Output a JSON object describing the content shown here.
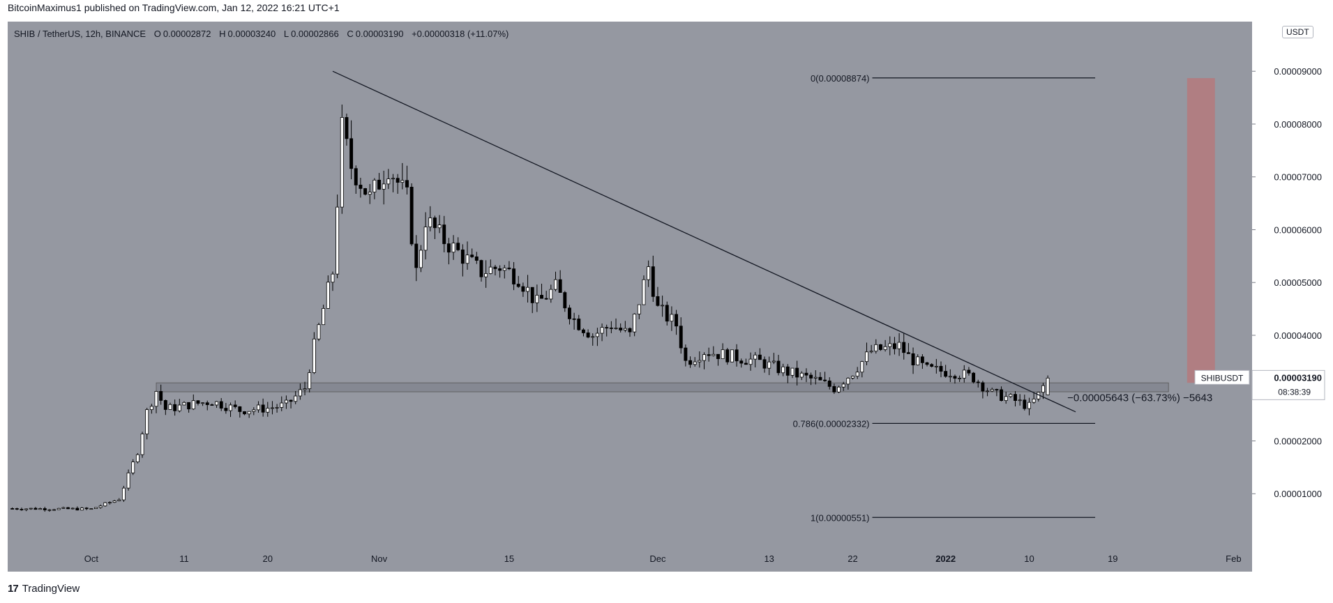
{
  "header": {
    "publisher_line": "BitcoinMaximus1 published on TradingView.com, Jan 12, 2022 16:21 UTC+1"
  },
  "legend": {
    "symbol": "SHIB / TetherUS, 12h, BINANCE",
    "o_label": "O",
    "o_value": "0.00002872",
    "h_label": "H",
    "h_value": "0.00003240",
    "l_label": "L",
    "l_value": "0.00002866",
    "c_label": "C",
    "c_value": "0.00003190",
    "change": "+0.00000318 (+11.07%)"
  },
  "currency_badge": "USDT",
  "price_tag": {
    "symbol": "SHIBUSDT",
    "price": "0.00003190",
    "countdown": "08:38:39"
  },
  "annotations": {
    "fib_0": "0(0.00008874)",
    "fib_0786": "0.786(0.00002332)",
    "fib_1": "1(0.00000551)",
    "measure": "−0.00005643 (−63.73%) −5643"
  },
  "footer": {
    "brand": "TradingView",
    "mark": "17"
  },
  "colors": {
    "plot_bg": "#9598a1",
    "up_body": "#ffffff",
    "down_body": "#000000",
    "target_zone": "#b5797c",
    "support_band": "#787b86"
  },
  "chart_data": {
    "type": "candlestick",
    "symbol": "SHIBUSDT",
    "interval": "12h",
    "exchange": "BINANCE",
    "ylim": [
      0.0,
      9.94e-05
    ],
    "y_ticks": [
      "0.00001000",
      "0.00002000",
      "0.00003000",
      "0.00004000",
      "0.00005000",
      "0.00006000",
      "0.00007000",
      "0.00008000",
      "0.00009000"
    ],
    "y_tick_values": [
      1e-05,
      2e-05,
      3e-05,
      4e-05,
      5e-05,
      6e-05,
      7e-05,
      8e-05,
      9e-05
    ],
    "x_ticks": [
      "Oct",
      "11",
      "20",
      "Nov",
      "15",
      "Dec",
      "13",
      "22",
      "2022",
      "10",
      "19",
      "Feb"
    ],
    "x_tick_dates": [
      "2021-10-01",
      "2021-10-11",
      "2021-10-20",
      "2021-11-01",
      "2021-11-15",
      "2021-12-01",
      "2021-12-13",
      "2021-12-22",
      "2022-01-01",
      "2022-01-10",
      "2022-01-19",
      "2022-02-01"
    ],
    "grid": false,
    "close_trend": [
      [
        "2021-09-22",
        7.2e-06
      ],
      [
        "2021-10-01",
        7.1e-06
      ],
      [
        "2021-10-04",
        9e-06
      ],
      [
        "2021-10-06",
        1.8e-05
      ],
      [
        "2021-10-07",
        2.55e-05
      ],
      [
        "2021-10-08",
        2.95e-05
      ],
      [
        "2021-10-09",
        2.6e-05
      ],
      [
        "2021-10-12",
        2.7e-05
      ],
      [
        "2021-10-14",
        2.75e-05
      ],
      [
        "2021-10-17",
        2.58e-05
      ],
      [
        "2021-10-20",
        2.62e-05
      ],
      [
        "2021-10-22",
        2.68e-05
      ],
      [
        "2021-10-24",
        3e-05
      ],
      [
        "2021-10-25",
        3.8e-05
      ],
      [
        "2021-10-26",
        4.5e-05
      ],
      [
        "2021-10-27",
        5.2e-05
      ],
      [
        "2021-10-28",
        7.9e-05
      ],
      [
        "2021-10-29",
        7.2e-05
      ],
      [
        "2021-10-31",
        6.6e-05
      ],
      [
        "2021-11-02",
        7.2e-05
      ],
      [
        "2021-11-04",
        6.6e-05
      ],
      [
        "2021-11-05",
        5.2e-05
      ],
      [
        "2021-11-06",
        6.2e-05
      ],
      [
        "2021-11-08",
        5.8e-05
      ],
      [
        "2021-11-10",
        5.5e-05
      ],
      [
        "2021-11-12",
        5.2e-05
      ],
      [
        "2021-11-14",
        5.3e-05
      ],
      [
        "2021-11-16",
        5.1e-05
      ],
      [
        "2021-11-18",
        4.6e-05
      ],
      [
        "2021-11-20",
        4.9e-05
      ],
      [
        "2021-11-22",
        4.3e-05
      ],
      [
        "2021-11-24",
        4e-05
      ],
      [
        "2021-11-26",
        4.2e-05
      ],
      [
        "2021-11-28",
        4e-05
      ],
      [
        "2021-11-30",
        5.3e-05
      ],
      [
        "2021-12-01",
        4.5e-05
      ],
      [
        "2021-12-03",
        4.2e-05
      ],
      [
        "2021-12-04",
        3.5e-05
      ],
      [
        "2021-12-06",
        3.7e-05
      ],
      [
        "2021-12-09",
        3.6e-05
      ],
      [
        "2021-12-12",
        3.5e-05
      ],
      [
        "2021-12-15",
        3.3e-05
      ],
      [
        "2021-12-18",
        3.15e-05
      ],
      [
        "2021-12-20",
        3e-05
      ],
      [
        "2021-12-22",
        3.3e-05
      ],
      [
        "2021-12-24",
        3.7e-05
      ],
      [
        "2021-12-27",
        3.8e-05
      ],
      [
        "2021-12-28",
        3.6e-05
      ],
      [
        "2021-12-30",
        3.35e-05
      ],
      [
        "2022-01-02",
        3.3e-05
      ],
      [
        "2022-01-04",
        3.2e-05
      ],
      [
        "2022-01-06",
        2.9e-05
      ],
      [
        "2022-01-08",
        2.8e-05
      ],
      [
        "2022-01-10",
        2.65e-05
      ],
      [
        "2022-01-11",
        2.87e-05
      ],
      [
        "2022-01-12",
        3.19e-05
      ]
    ],
    "last_candle": {
      "date": "2022-01-12",
      "open": 2.872e-05,
      "high": 3.24e-05,
      "low": 2.866e-05,
      "close": 3.19e-05
    },
    "descending_trendline": [
      [
        "2021-10-27",
        9e-05
      ],
      [
        "2022-01-15",
        2.55e-05
      ]
    ],
    "horizontal_support_zone": {
      "from": "2021-10-08",
      "to": "2022-01-25",
      "low": 2.93e-05,
      "high": 3.1e-05
    },
    "fibonacci_levels": [
      {
        "level": 0,
        "value": 8.874e-05
      },
      {
        "level": 0.786,
        "value": 2.332e-05
      },
      {
        "level": 1,
        "value": 5.51e-06
      }
    ],
    "target_zone": {
      "from": "2022-01-27",
      "to": "2022-01-30",
      "low": 3.1e-05,
      "high": 8.87e-05
    },
    "measure": {
      "delta": -5.643e-05,
      "percent": -63.73,
      "points": -5643
    }
  }
}
